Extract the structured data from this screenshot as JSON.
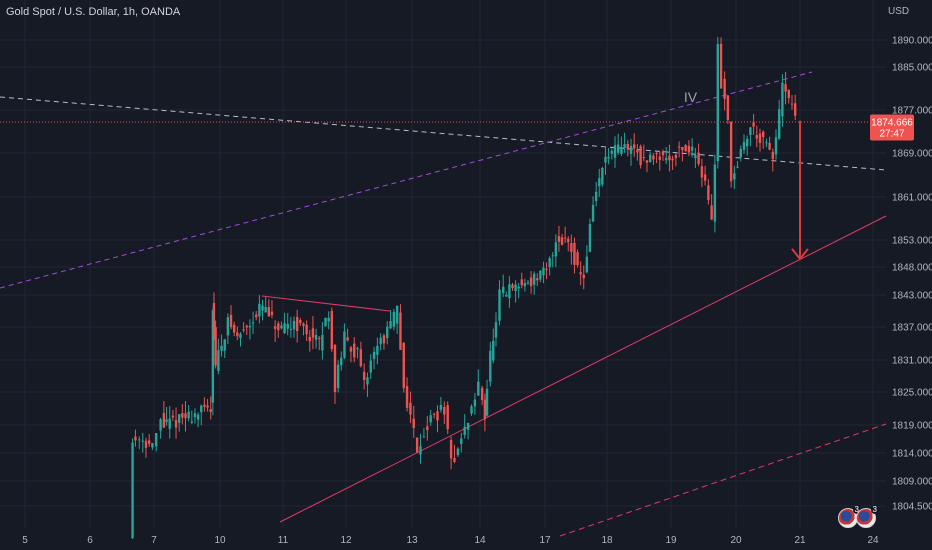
{
  "header": {
    "title": "Gold Spot / U.S. Dollar, 1h, OANDA",
    "currency": "USD"
  },
  "price_label": {
    "value": "1874.666",
    "countdown": "27:47"
  },
  "annotation": {
    "wave_label": "IV"
  },
  "events": {
    "badge_1": "3",
    "badge_2": "3"
  },
  "colors": {
    "background": "#161a25",
    "grid": "#232734",
    "up": "#26a69a",
    "down": "#ef5350",
    "channel_upper": "#9c50d8",
    "channel_lower": "#e03a66",
    "trendline": "#b8bccb",
    "arrow": "#d93a3a",
    "price_tag": "#ef5350"
  },
  "chart_data": {
    "type": "candlestick",
    "title": "Gold Spot / U.S. Dollar, 1h, OANDA",
    "y_unit": "USD",
    "y_ticks": [
      "1890.000",
      "1885.000",
      "1877.000",
      "1869.000",
      "1861.000",
      "1853.000",
      "1848.000",
      "1843.000",
      "1837.000",
      "1831.000",
      "1825.000",
      "1819.000",
      "1814.000",
      "1809.000",
      "1804.500"
    ],
    "x_ticks": [
      "5",
      "6",
      "7",
      "10",
      "11",
      "12",
      "13",
      "14",
      "17",
      "18",
      "19",
      "20",
      "21",
      "24"
    ],
    "last_price": 1874.666,
    "path": [
      [
        6.65,
        1800
      ],
      [
        6.68,
        1816
      ],
      [
        6.8,
        1817
      ],
      [
        7.0,
        1815
      ],
      [
        7.2,
        1817
      ],
      [
        7.4,
        1820
      ],
      [
        7.5,
        1819
      ],
      [
        9.65,
        1822
      ],
      [
        9.7,
        1841
      ],
      [
        9.75,
        1836
      ],
      [
        9.85,
        1830
      ],
      [
        10.0,
        1832
      ],
      [
        10.15,
        1838
      ],
      [
        10.3,
        1835
      ],
      [
        10.5,
        1838
      ],
      [
        10.7,
        1841
      ],
      [
        10.9,
        1837
      ],
      [
        11.0,
        1836
      ],
      [
        11.2,
        1838
      ],
      [
        11.4,
        1836
      ],
      [
        11.6,
        1834
      ],
      [
        11.75,
        1840
      ],
      [
        11.85,
        1826
      ],
      [
        12.0,
        1835
      ],
      [
        12.2,
        1832
      ],
      [
        12.3,
        1826
      ],
      [
        12.45,
        1833
      ],
      [
        12.6,
        1835
      ],
      [
        12.8,
        1840
      ],
      [
        12.9,
        1826
      ],
      [
        13.1,
        1815
      ],
      [
        13.3,
        1820
      ],
      [
        13.5,
        1822
      ],
      [
        13.6,
        1812
      ],
      [
        13.8,
        1818
      ],
      [
        14.0,
        1826
      ],
      [
        14.2,
        1824
      ],
      [
        14.25,
        1821
      ],
      [
        14.4,
        1826
      ],
      [
        14.55,
        1832
      ],
      [
        14.8,
        1837
      ],
      [
        15.0,
        1843
      ],
      [
        17.05,
        1847
      ],
      [
        17.2,
        1853
      ],
      [
        17.4,
        1853
      ],
      [
        17.55,
        1848
      ],
      [
        17.65,
        1846
      ],
      [
        17.8,
        1860
      ],
      [
        18.0,
        1868
      ],
      [
        18.25,
        1870
      ],
      [
        18.45,
        1870
      ],
      [
        18.6,
        1867
      ],
      [
        18.8,
        1869
      ],
      [
        19.0,
        1868
      ],
      [
        19.2,
        1870
      ],
      [
        19.4,
        1869
      ],
      [
        19.55,
        1864
      ],
      [
        19.65,
        1856
      ],
      [
        19.7,
        1868
      ],
      [
        19.74,
        1889
      ],
      [
        19.8,
        1882
      ],
      [
        19.9,
        1876
      ],
      [
        19.95,
        1864
      ],
      [
        20.1,
        1869
      ],
      [
        20.25,
        1874
      ],
      [
        20.45,
        1871
      ],
      [
        20.6,
        1868
      ],
      [
        20.75,
        1881
      ],
      [
        20.85,
        1879
      ],
      [
        20.95,
        1875
      ]
    ],
    "annotations": [
      {
        "type": "wave-label",
        "text": "IV",
        "x": 19.3,
        "y": 1878.5
      },
      {
        "type": "projection-arrow",
        "from": {
          "x": 21.0,
          "y": 1875.0
        },
        "to": {
          "x": 21.0,
          "y": 1849.5
        }
      }
    ]
  }
}
